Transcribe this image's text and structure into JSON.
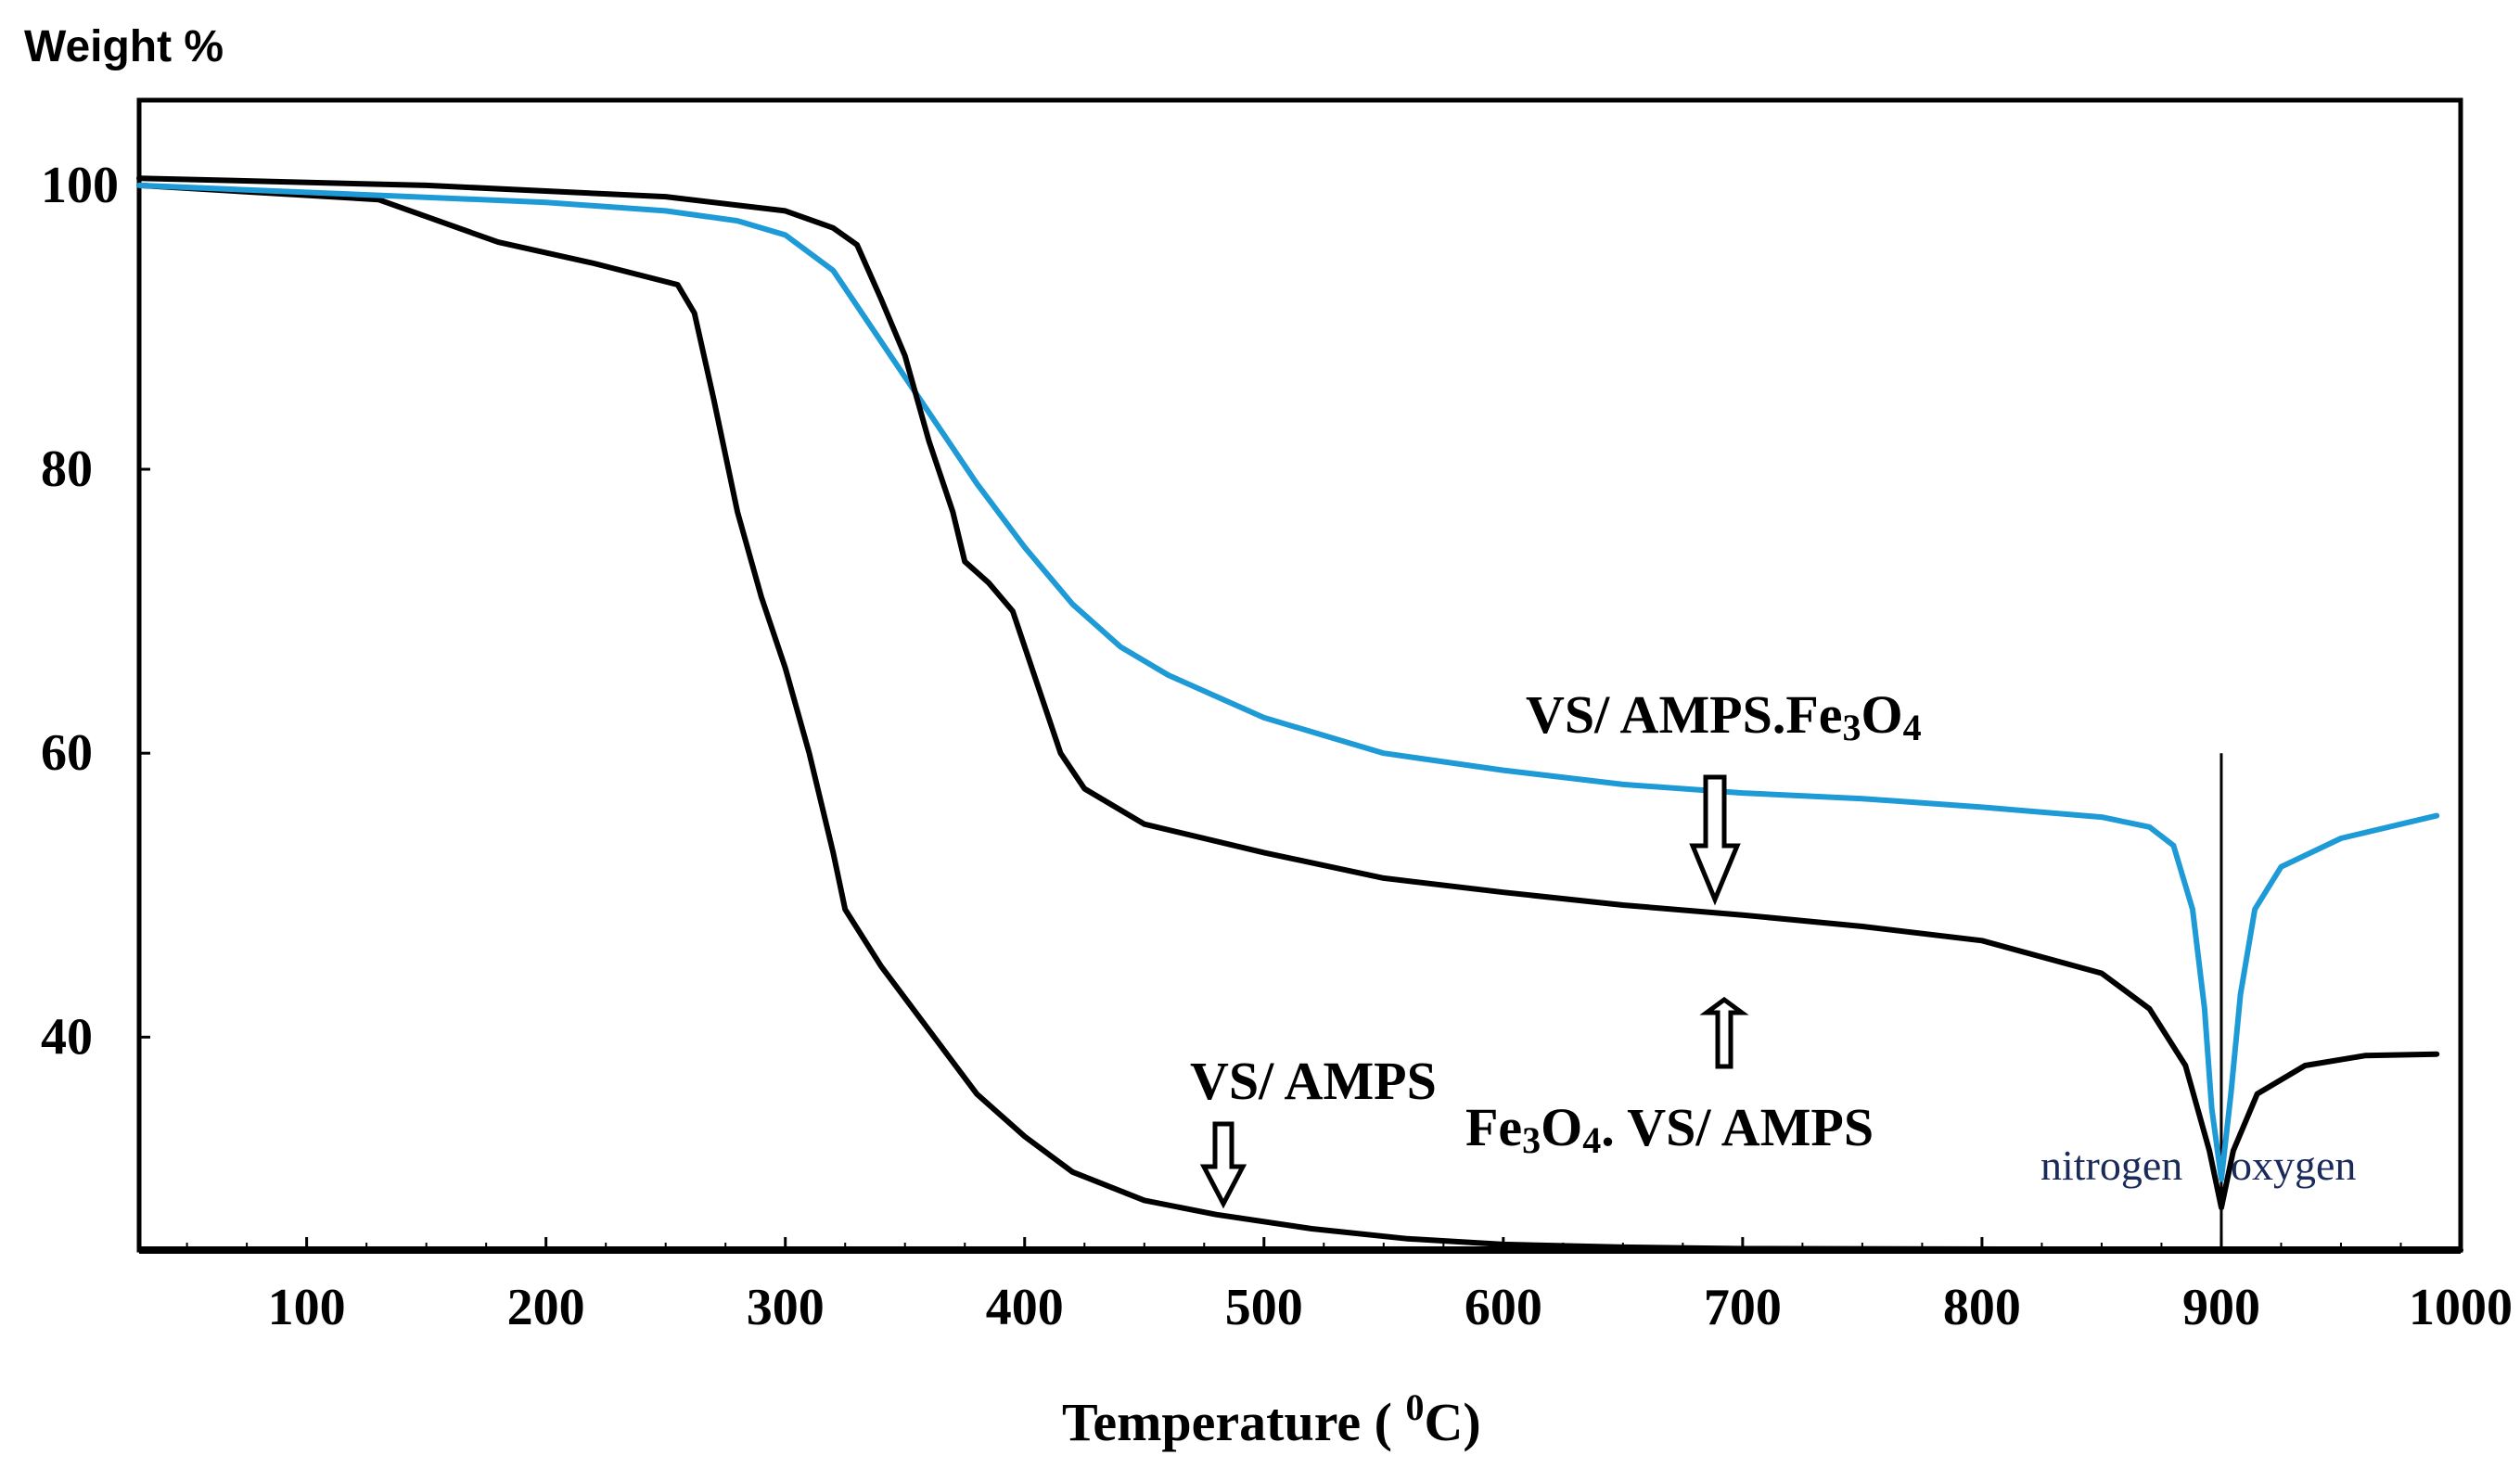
{
  "chart_data": {
    "type": "line",
    "title": "",
    "ylabel": "Weight %",
    "xlabel": "Temperature ( ",
    "xlabel_sup": "0",
    "xlabel_unit": "C)",
    "xlim": [
      30,
      1000
    ],
    "ylim": [
      25,
      106
    ],
    "x_ticks": [
      100,
      200,
      300,
      400,
      500,
      600,
      700,
      800,
      900,
      1000
    ],
    "y_ticks": [
      100,
      80,
      60,
      40
    ],
    "series": [
      {
        "name": "VS/ AMPS",
        "color": "#000000",
        "points": [
          [
            30,
            100
          ],
          [
            130,
            99
          ],
          [
            180,
            96
          ],
          [
            220,
            94.5
          ],
          [
            255,
            93
          ],
          [
            262,
            91
          ],
          [
            270,
            85
          ],
          [
            280,
            77
          ],
          [
            290,
            71
          ],
          [
            300,
            66
          ],
          [
            310,
            60
          ],
          [
            320,
            53
          ],
          [
            325,
            49
          ],
          [
            340,
            45
          ],
          [
            360,
            40.5
          ],
          [
            380,
            36
          ],
          [
            400,
            33
          ],
          [
            420,
            30.5
          ],
          [
            450,
            28.5
          ],
          [
            480,
            27.5
          ],
          [
            520,
            26.5
          ],
          [
            560,
            25.8
          ],
          [
            600,
            25.4
          ],
          [
            650,
            25.2
          ],
          [
            700,
            25.1
          ],
          [
            1000,
            25
          ]
        ]
      },
      {
        "name": "VS/ AMPS.Fe3O4",
        "color": "#1e9ad6",
        "points": [
          [
            30,
            100
          ],
          [
            130,
            99.3
          ],
          [
            200,
            98.8
          ],
          [
            250,
            98.2
          ],
          [
            280,
            97.5
          ],
          [
            300,
            96.5
          ],
          [
            320,
            94
          ],
          [
            340,
            89
          ],
          [
            360,
            84
          ],
          [
            380,
            79
          ],
          [
            400,
            74.5
          ],
          [
            420,
            70.5
          ],
          [
            440,
            67.5
          ],
          [
            460,
            65.5
          ],
          [
            500,
            62.5
          ],
          [
            550,
            60
          ],
          [
            600,
            58.8
          ],
          [
            650,
            57.8
          ],
          [
            700,
            57.2
          ],
          [
            750,
            56.8
          ],
          [
            800,
            56.2
          ],
          [
            850,
            55.5
          ],
          [
            870,
            54.8
          ],
          [
            880,
            53.5
          ],
          [
            888,
            49
          ],
          [
            893,
            42
          ],
          [
            896,
            35
          ],
          [
            900,
            30
          ],
          [
            904,
            36
          ],
          [
            908,
            43
          ],
          [
            914,
            49
          ],
          [
            925,
            52
          ],
          [
            950,
            54
          ],
          [
            975,
            55
          ],
          [
            990,
            55.6
          ]
        ]
      },
      {
        "name": "Fe3O4. VS/ AMPS",
        "color": "#000000",
        "points": [
          [
            30,
            100.5
          ],
          [
            150,
            100
          ],
          [
            250,
            99.2
          ],
          [
            300,
            98.2
          ],
          [
            320,
            97
          ],
          [
            330,
            95.8
          ],
          [
            340,
            92
          ],
          [
            350,
            88
          ],
          [
            360,
            82
          ],
          [
            370,
            77
          ],
          [
            375,
            73.5
          ],
          [
            385,
            72
          ],
          [
            395,
            70
          ],
          [
            405,
            65
          ],
          [
            415,
            60
          ],
          [
            425,
            57.5
          ],
          [
            450,
            55
          ],
          [
            500,
            53
          ],
          [
            550,
            51.2
          ],
          [
            600,
            50.2
          ],
          [
            650,
            49.3
          ],
          [
            700,
            48.6
          ],
          [
            750,
            47.8
          ],
          [
            800,
            46.8
          ],
          [
            850,
            44.5
          ],
          [
            870,
            42
          ],
          [
            885,
            38
          ],
          [
            895,
            32
          ],
          [
            900,
            28
          ],
          [
            905,
            32
          ],
          [
            915,
            36
          ],
          [
            935,
            38
          ],
          [
            960,
            38.7
          ],
          [
            990,
            38.8
          ]
        ]
      }
    ],
    "annotations": {
      "vs_amps": "VS/ AMPS",
      "vs_amps_fe": "VS/ AMPS.Fe",
      "vs_amps_fe_sub1": "3",
      "vs_amps_fe_o": "O",
      "vs_amps_fe_sub2": "4",
      "fe_vs_amps_fe": "Fe",
      "fe_vs_amps_sub1": "3",
      "fe_vs_amps_o": "O",
      "fe_vs_amps_sub2": "4",
      "fe_vs_amps_rest": ". VS/ AMPS",
      "nitrogen": "nitrogen",
      "oxygen": "oxygen"
    }
  }
}
